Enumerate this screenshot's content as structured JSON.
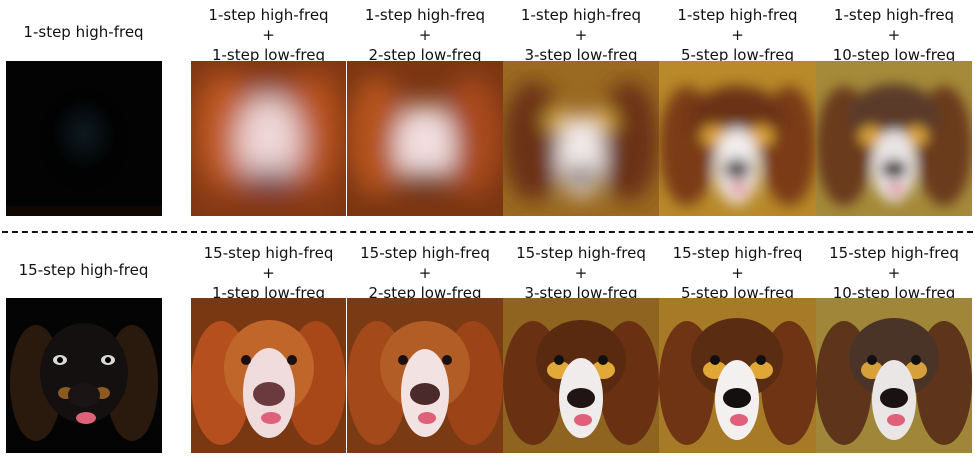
{
  "figure": {
    "top_row": {
      "reference_label": "1-step high-freq",
      "columns": [
        {
          "line1": "1-step high-freq",
          "line2": "+",
          "line3": "1-step low-freq"
        },
        {
          "line1": "1-step high-freq",
          "line2": "+",
          "line3": "2-step low-freq"
        },
        {
          "line1": "1-step high-freq",
          "line2": "+",
          "line3": "3-step low-freq"
        },
        {
          "line1": "1-step high-freq",
          "line2": "+",
          "line3": "5-step low-freq"
        },
        {
          "line1": "1-step high-freq",
          "line2": "+",
          "line3": "10-step low-freq"
        }
      ]
    },
    "bottom_row": {
      "reference_label": "15-step high-freq",
      "columns": [
        {
          "line1": "15-step high-freq",
          "line2": "+",
          "line3": "1-step low-freq"
        },
        {
          "line1": "15-step high-freq",
          "line2": "+",
          "line3": "2-step low-freq"
        },
        {
          "line1": "15-step high-freq",
          "line2": "+",
          "line3": "3-step low-freq"
        },
        {
          "line1": "15-step high-freq",
          "line2": "+",
          "line3": "5-step low-freq"
        },
        {
          "line1": "15-step high-freq",
          "line2": "+",
          "line3": "10-step low-freq"
        }
      ]
    },
    "colors": {
      "fur_red": "#a8431c",
      "fur_gold": "#c98a2a",
      "face_white": "#efe6e6",
      "nose": "#2a1a1a",
      "tongue": "#e0607a",
      "bg_warm": "#6b3a12"
    }
  }
}
